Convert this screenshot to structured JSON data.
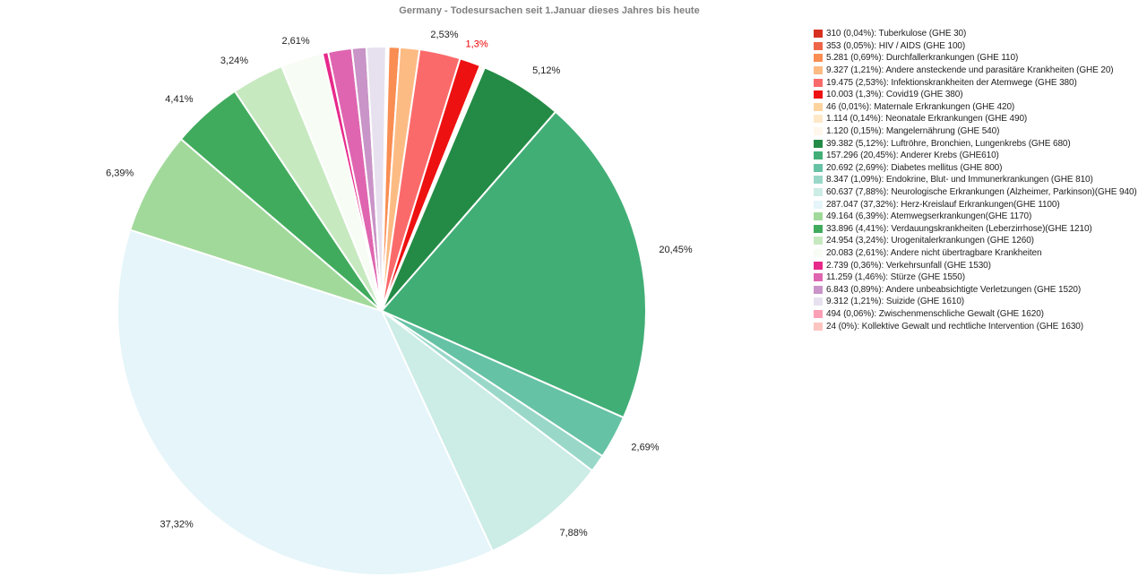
{
  "chart_data": {
    "type": "pie",
    "title": "Germany - Todesursachen seit 1.Januar dieses Jahres bis heute",
    "legend_position": "right",
    "slices": [
      {
        "legend": "310 (0,04%): Tuberkulose (GHE 30)",
        "value": 310,
        "percent_label": "",
        "color": "#d7301f"
      },
      {
        "legend": "353 (0,05%): HIV / AIDS (GHE 100)",
        "value": 353,
        "percent_label": "",
        "color": "#ef6548"
      },
      {
        "legend": "5.281 (0,69%): Durchfallerkrankungen (GHE 110)",
        "value": 5281,
        "percent_label": "",
        "color": "#f98d52"
      },
      {
        "legend": "9.327 (1,21%): Andere ansteckende und parasitäre Krankheiten (GHE 20)",
        "value": 9327,
        "percent_label": "",
        "color": "#fdbb84"
      },
      {
        "legend": "19.475 (2,53%): Infektionskrankheiten der Atemwege (GHE 380)",
        "value": 19475,
        "percent_label": "2,53%",
        "color": "#fb6a6a"
      },
      {
        "legend": "10.003 (1,3%): Covid19 (GHE 380)",
        "value": 10003,
        "percent_label": "1,3%",
        "label_color": "#ee0000",
        "color": "#ee1111"
      },
      {
        "legend": "46 (0,01%): Maternale Erkrankungen (GHE 420)",
        "value": 46,
        "percent_label": "",
        "color": "#fdd49e"
      },
      {
        "legend": "1.114 (0,14%): Neonatale Erkrankungen (GHE 490)",
        "value": 1114,
        "percent_label": "",
        "color": "#fee8c8"
      },
      {
        "legend": "1.120 (0,15%): Mangelernährung (GHE 540)",
        "value": 1120,
        "percent_label": "",
        "color": "#fff7ec"
      },
      {
        "legend": "39.382 (5,12%): Luftröhre, Bronchien, Lungenkrebs (GHE 680)",
        "value": 39382,
        "percent_label": "5,12%",
        "color": "#238b45"
      },
      {
        "legend": "157.296 (20,45%): Anderer Krebs (GHE610)",
        "value": 157296,
        "percent_label": "20,45%",
        "color": "#41ae76"
      },
      {
        "legend": "20.692 (2,69%): Diabetes mellitus (GHE 800)",
        "value": 20692,
        "percent_label": "2,69%",
        "color": "#66c2a4"
      },
      {
        "legend": "8.347 (1,09%): Endokrine, Blut- und Immunerkrankungen (GHE 810)",
        "value": 8347,
        "percent_label": "",
        "color": "#99d8c9"
      },
      {
        "legend": "60.637 (7,88%): Neurologische Erkrankungen (Alzheimer, Parkinson)(GHE 940)",
        "value": 60637,
        "percent_label": "7,88%",
        "color": "#ccece6"
      },
      {
        "legend": "287.047 (37,32%): Herz-Kreislauf Erkrankungen(GHE 1100)",
        "value": 287047,
        "percent_label": "37,32%",
        "color": "#e5f5f9"
      },
      {
        "legend": "49.164 (6,39%): Atemwegserkrankungen(GHE 1170)",
        "value": 49164,
        "percent_label": "6,39%",
        "color": "#a1d99b"
      },
      {
        "legend": "33.896 (4,41%): Verdauungskrankheiten (Leberzirrhose)(GHE 1210)",
        "value": 33896,
        "percent_label": "4,41%",
        "color": "#41ab5d"
      },
      {
        "legend": "24.954 (3,24%): Urogenitalerkrankungen (GHE 1260)",
        "value": 24954,
        "percent_label": "3,24%",
        "color": "#c7e9c0"
      },
      {
        "legend": "20.083 (2,61%): Andere nicht übertragbare Krankheiten",
        "value": 20083,
        "percent_label": "2,61%",
        "color": "#f7fcf5"
      },
      {
        "legend": "2.739 (0,36%): Verkehrsunfall (GHE 1530)",
        "value": 2739,
        "percent_label": "",
        "color": "#e7298a"
      },
      {
        "legend": "11.259 (1,46%): Stürze (GHE 1550)",
        "value": 11259,
        "percent_label": "",
        "color": "#df65b0"
      },
      {
        "legend": "6.843 (0,89%): Andere unbeabsichtigte Verletzungen (GHE 1520)",
        "value": 6843,
        "percent_label": "",
        "color": "#c994c7"
      },
      {
        "legend": "9.312 (1,21%): Suizide (GHE 1610)",
        "value": 9312,
        "percent_label": "",
        "color": "#e7e1ef"
      },
      {
        "legend": "494 (0,06%): Zwischenmenschliche Gewalt (GHE 1620)",
        "value": 494,
        "percent_label": "",
        "color": "#fa9fb5"
      },
      {
        "legend": "24 (0%): Kollektive Gewalt und rechtliche Intervention (GHE 1630)",
        "value": 24,
        "percent_label": "",
        "color": "#fcc5c0"
      }
    ]
  }
}
